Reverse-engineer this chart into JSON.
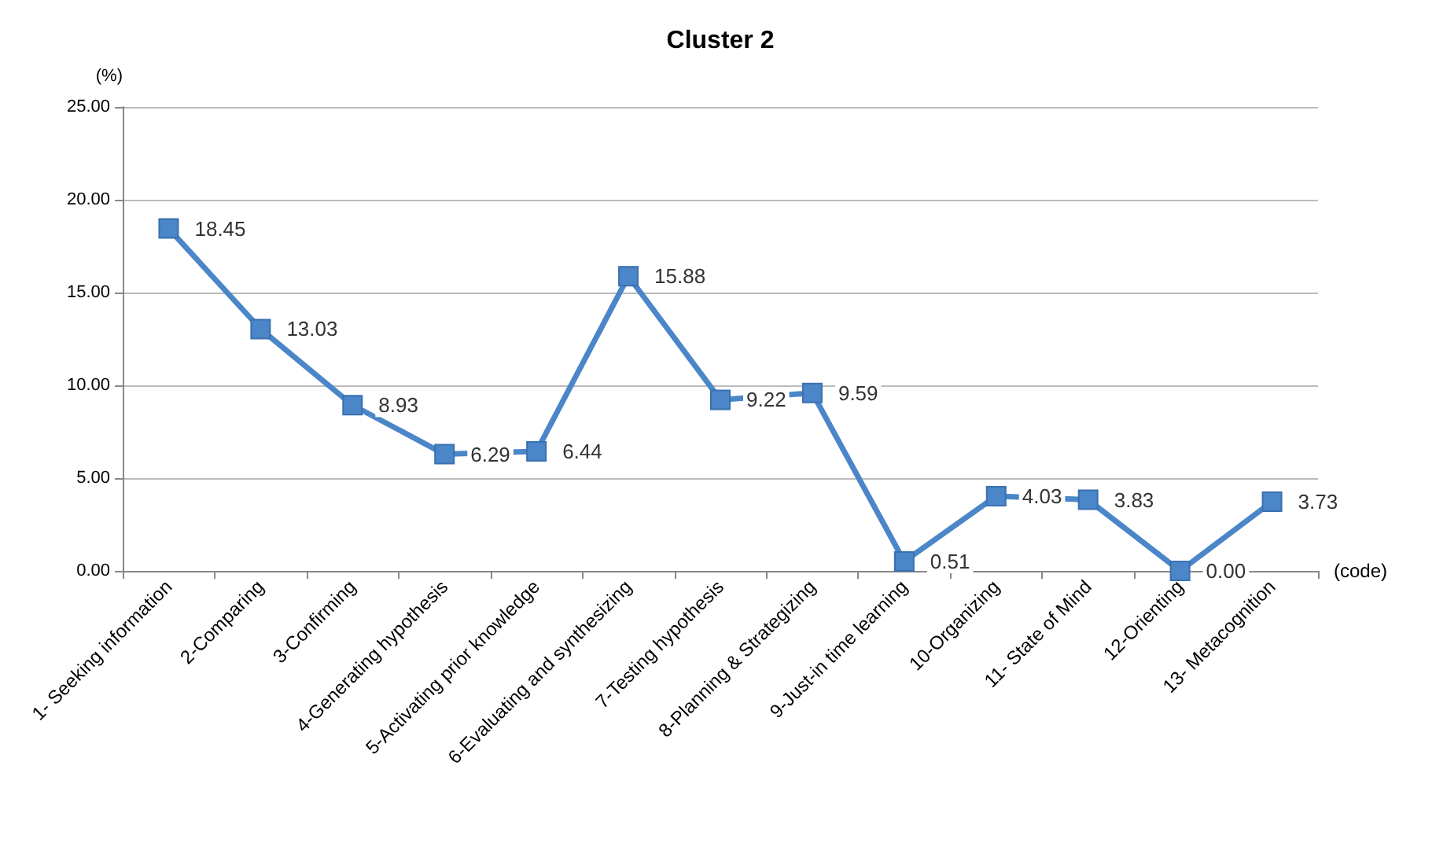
{
  "chart_data": {
    "type": "line",
    "title": "Cluster 2",
    "ylabel": "(%)",
    "xlabel": "(code)",
    "categories": [
      "1- Seeking information",
      "2-Comparing",
      "3-Confirming",
      "4-Generating hypothesis",
      "5-Activating prior knowledge",
      "6-Evaluating and synthesizing",
      "7-Testing hypothesis",
      "8-Planning & Strategizing",
      "9-Just-in time learning",
      "10-Organizing",
      "11- State of Mind",
      "12-Orienting",
      "13- Metacognition"
    ],
    "series": [
      {
        "color": "#4a86c8",
        "values": [
          18.45,
          13.03,
          8.93,
          6.29,
          6.44,
          15.88,
          9.22,
          9.59,
          0.51,
          4.03,
          3.83,
          0.0,
          3.73
        ],
        "value_labels": [
          "18.45",
          "13.03",
          "8.93",
          "6.29",
          "6.44",
          "15.88",
          "9.22",
          "9.59",
          "0.51",
          "4.03",
          "3.83",
          "0.00",
          "3.73"
        ]
      }
    ],
    "ylim": [
      0,
      25
    ],
    "yticks": [
      {
        "value": 0,
        "label": "0.00"
      },
      {
        "value": 5,
        "label": "5.00"
      },
      {
        "value": 10,
        "label": "10.00"
      },
      {
        "value": 15,
        "label": "15.00"
      },
      {
        "value": 20,
        "label": "20.00"
      },
      {
        "value": 25,
        "label": "25.00"
      }
    ],
    "grid": "y",
    "marker": "square",
    "line_style": "solid"
  }
}
